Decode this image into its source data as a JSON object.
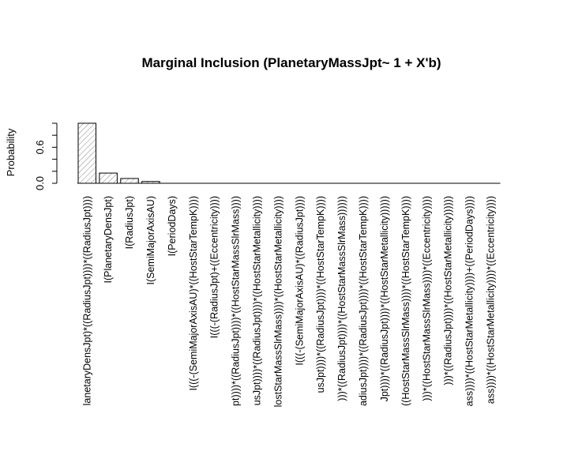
{
  "chart_data": {
    "type": "bar",
    "title": "Marginal Inclusion (PlanetaryMassJpt~ 1 + X'b)",
    "xlabel": "",
    "ylabel": "Probability",
    "ylim": [
      0,
      1
    ],
    "yticks": [
      0.0,
      0.2,
      0.4,
      0.6,
      0.8,
      1.0
    ],
    "ytick_labels": [
      "0.0",
      "",
      "",
      "0.6",
      "",
      ""
    ],
    "grid": false,
    "bar_fill": "hatched",
    "categories": [
      "I(((PlanetaryDensJpt)*((RadiusJpt)))*((RadiusJpt))))",
      "I(PlanetaryDensJpt)",
      "I(RadiusJpt)",
      "I(SemiMajorAxisAU)",
      "I(PeriodDays)",
      "I(((-(SemiMajorAxisAU)*((HostStarTempK))))",
      "I(((-(RadiusJpt)+((Eccentricity))))",
      "I((((RadiusJpt)))*((RadiusJpt))))*((HostStarMassSlrMass))))",
      "I(((((RadiusJpt)))*((RadiusJpt))))*((HostStarMetallicity))))",
      "I((((HostStarMassSlrMass))))*((HostStarMetallicity))))",
      "I(((-(SemiMajorAxisAU)*((RadiusJpt))))",
      "I((((RadiusJpt)))*((RadiusJpt))))*((HostStarTempK))))",
      "I((((RadiusJpt))))*((RadiusJpt))))*((HostStarMassSlrMass))))))",
      "I((((RadiusJpt))))*((RadiusJpt))))*((HostStarTempK))))",
      "I((((RadiusJpt))))*((RadiusJpt))))*((HostStarMetallicity))))))",
      "I((((HostStarMassSlrMass))))*((HostStarTempK))))",
      "I((((HostStarMassSlrMass))))*((HostStarMassSlrMass))))*((Eccentricity))))",
      "I((((RadiusJpt))))*((RadiusJpt))))*((HostStarMetallicity))))))",
      "I((((HostStarMassSlrMass))))*((HostStarMetallicity))))+((PeriodDays))))",
      "I((((HostStarMassSlrMass))))*((HostStarMetallicity))))*((Eccentricity))))"
    ],
    "visible_labels": [
      "lanetaryDensJpt)*((RadiusJpt))))*((RadiusJpt))))",
      "I(PlanetaryDensJpt)",
      "I(RadiusJpt)",
      "I(SemiMajorAxisAU)",
      "I(PeriodDays)",
      "I(((-(SemiMajorAxisAU)*((HostStarTempK))))",
      "I(((-(RadiusJpt)+((Eccentricity))))",
      "pt))))*((RadiusJpt))))*((HostStarMassSlrMass))))",
      "usJpt))))*((RadiusJpt))))*((HostStarMetallicity))))",
      "lostStarMassSlrMass))))*((HostStarMetallicity))))",
      "I(((-(SemiMajorAxisAU)*((RadiusJpt))))",
      "usJpt))))*((RadiusJpt))))*((HostStarTempK))))",
      ")))*((RadiusJpt))))*((HostStarMassSlrMass))))))",
      "adiusJpt))))*((RadiusJpt))))*((HostStarTempK))))",
      "Jpt))))*((RadiusJpt))))*((HostStarMetallicity))))))",
      "((HostStarMassSlrMass))))*((HostStarTempK))))",
      ")))*((HostStarMassSlrMass))))*((Eccentricity))))",
      ")))*((RadiusJpt))))*((HostStarMetallicity))))))",
      "ass))))*((HostStarMetallicity))))+((PeriodDays))))",
      "ass))))*((HostStarMetallicity))))*((Eccentricity))))"
    ],
    "values": [
      1.0,
      0.17,
      0.08,
      0.03,
      0.005,
      0.0,
      0.0,
      0.0,
      0.0,
      0.0,
      0.0,
      0.0,
      0.0,
      0.0,
      0.0,
      0.0,
      0.0,
      0.0,
      0.0,
      0.0
    ]
  }
}
